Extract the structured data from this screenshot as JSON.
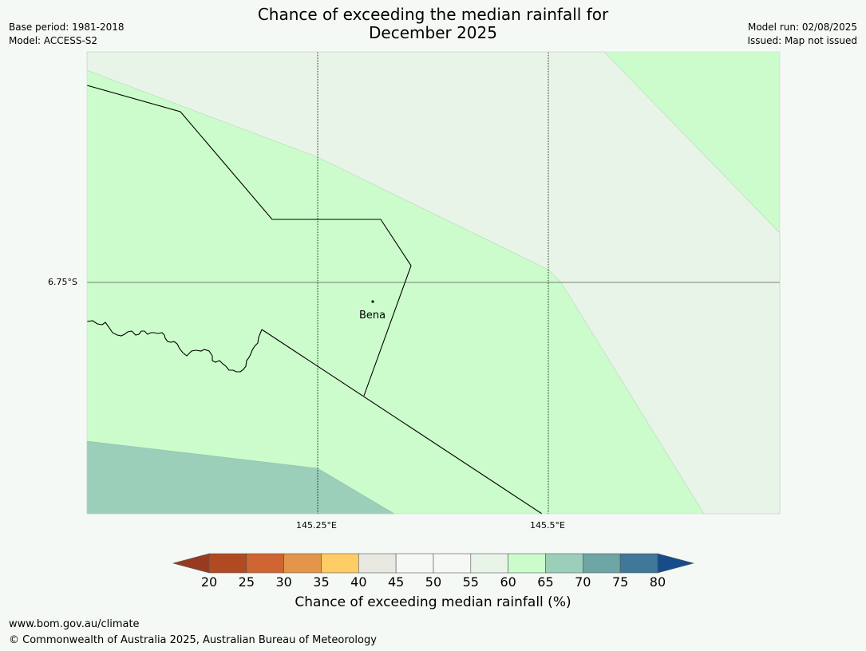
{
  "title_line1": "Chance of exceeding the median rainfall for",
  "title_line2": "December 2025",
  "meta_left": {
    "base_period": "Base period: 1981-2018",
    "model": "Model: ACCESS-S2"
  },
  "meta_right": {
    "model_run": "Model run: 02/08/2025",
    "issued": "Issued: Map not issued"
  },
  "map": {
    "lat_label": "6.75°S",
    "lon_labels": [
      "145.25°E",
      "145.5°E"
    ],
    "place": "Bena"
  },
  "colorbar": {
    "ticks": [
      "20",
      "25",
      "30",
      "35",
      "40",
      "45",
      "50",
      "55",
      "60",
      "65",
      "70",
      "75",
      "80"
    ],
    "colors": {
      "under": "#973a20",
      "bins": [
        "#b04a22",
        "#cf6532",
        "#e3954a",
        "#ffcc66",
        "#e8e8e1",
        "#f6f8f6",
        "#f6f8f6",
        "#e9f4e9",
        "#ccfccc",
        "#9ccfb9",
        "#6ea5a5",
        "#3f7899"
      ],
      "over": "#174c8a"
    },
    "label": "Chance of exceeding median rainfall (%)"
  },
  "footer": {
    "url": "www.bom.gov.au/climate",
    "copyright": "© Commonwealth of Australia 2025, Australian Bureau of Meteorology"
  }
}
